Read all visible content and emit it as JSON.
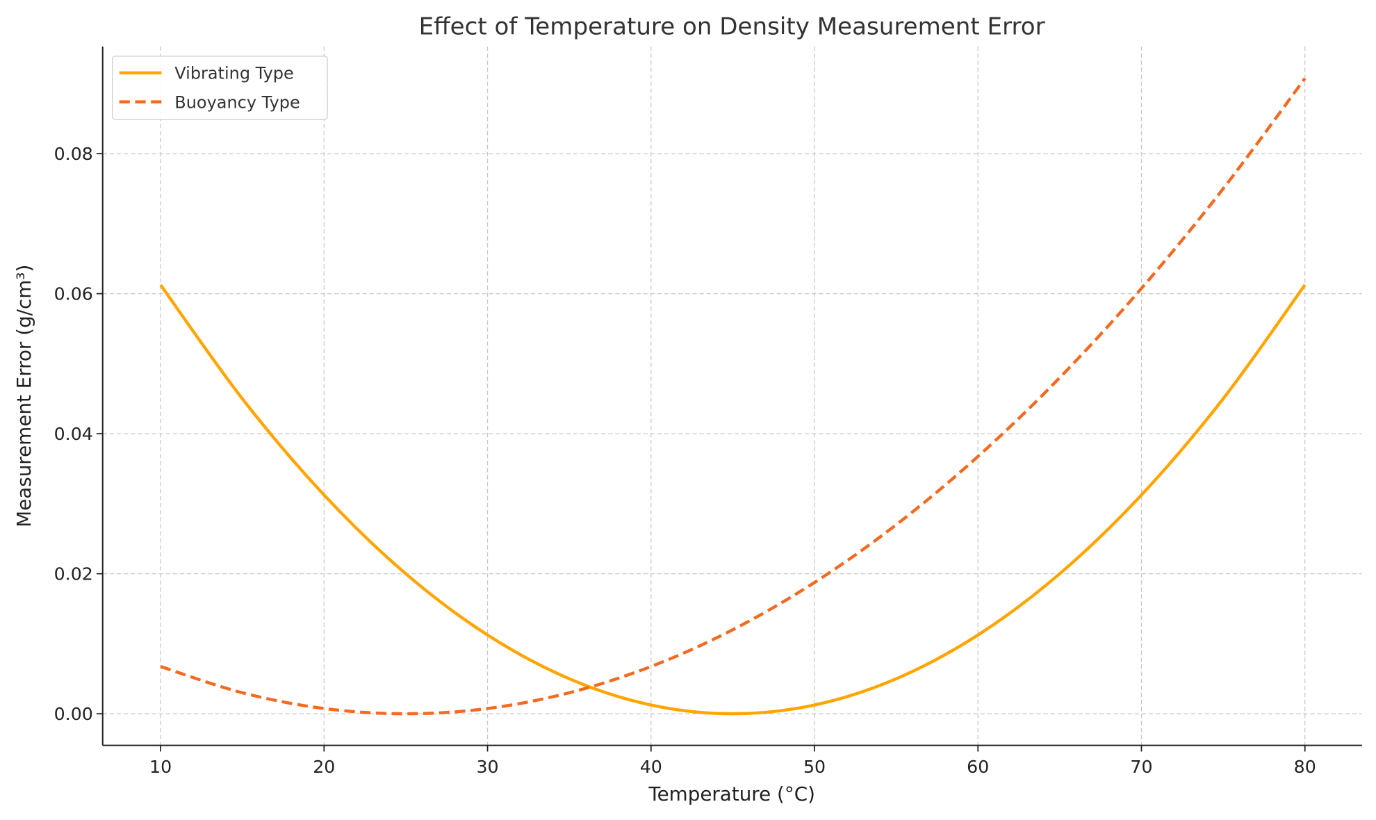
{
  "chart_data": {
    "type": "line",
    "title": "Effect of Temperature on Density Measurement Error",
    "xlabel": "Temperature (°C)",
    "ylabel": "Measurement Error (g/cm³)",
    "xlim": [
      6.5,
      83.5
    ],
    "ylim": [
      -0.0045,
      0.095
    ],
    "xticks": [
      10,
      20,
      30,
      40,
      50,
      60,
      70,
      80
    ],
    "xtick_labels": [
      "10",
      "20",
      "30",
      "40",
      "50",
      "60",
      "70",
      "80"
    ],
    "yticks": [
      0,
      0.02,
      0.04,
      0.06,
      0.08
    ],
    "ytick_labels": [
      "0.00",
      "0.02",
      "0.04",
      "0.06",
      "0.08"
    ],
    "grid": true,
    "legend_position": "top-left",
    "x": [
      10,
      15,
      20,
      25,
      30,
      35,
      40,
      45,
      50,
      55,
      60,
      65,
      70,
      75,
      80
    ],
    "series": [
      {
        "name": "Vibrating Type",
        "color": "#FFA500",
        "style": "solid",
        "values": [
          0.06125,
          0.045,
          0.03125,
          0.02,
          0.01125,
          0.005,
          0.00125,
          0,
          0.00125,
          0.005,
          0.01125,
          0.02,
          0.03125,
          0.045,
          0.06125
        ]
      },
      {
        "name": "Buoyancy Type",
        "color": "#F26B21",
        "style": "dashed",
        "values": [
          0.00675,
          0.003,
          0.00075,
          0,
          0.00075,
          0.003,
          0.00675,
          0.012,
          0.01875,
          0.027,
          0.03675,
          0.048,
          0.06075,
          0.075,
          0.09075
        ]
      }
    ]
  }
}
